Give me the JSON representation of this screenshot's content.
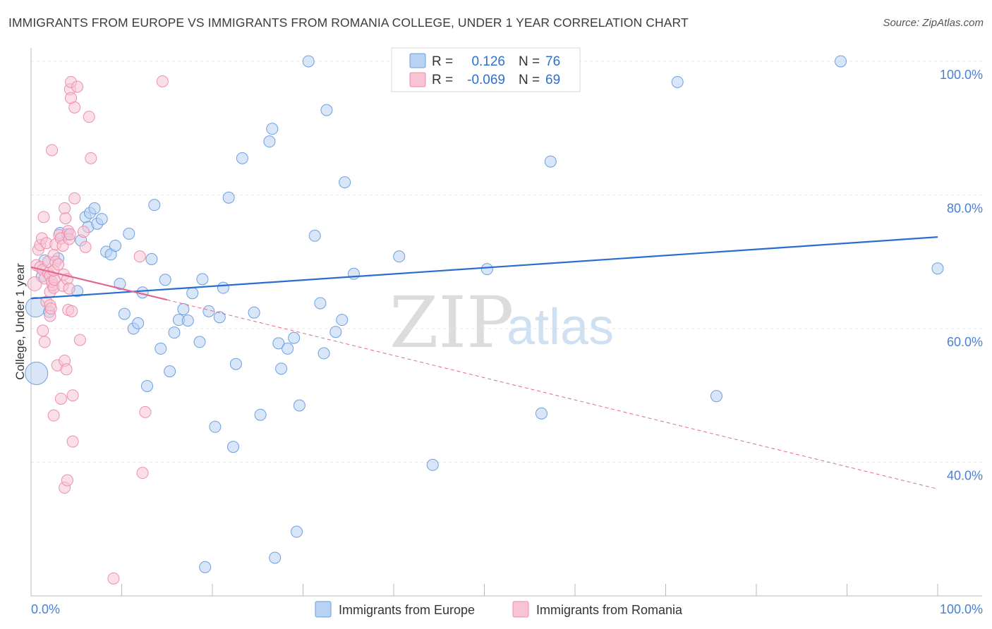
{
  "title": "IMMIGRANTS FROM EUROPE VS IMMIGRANTS FROM ROMANIA COLLEGE, UNDER 1 YEAR CORRELATION CHART",
  "source": "Source: ZipAtlas.com",
  "watermark": {
    "zip": "ZIP",
    "atlas": "atlas"
  },
  "legend": {
    "r_label": "R =",
    "n_label": "N =",
    "europe": {
      "r": "0.126",
      "n": "76"
    },
    "romania": {
      "r": "-0.069",
      "n": "69"
    }
  },
  "colors": {
    "europe_fill": "#b8d2f3",
    "europe_stroke": "#6d9fe0",
    "europe_line": "#2a6ccf",
    "romania_fill": "#f8c4d4",
    "romania_stroke": "#ec8fae",
    "romania_line": "#e0688f"
  },
  "chart_data": {
    "type": "scatter",
    "title": "IMMIGRANTS FROM EUROPE VS IMMIGRANTS FROM ROMANIA COLLEGE, UNDER 1 YEAR CORRELATION CHART",
    "xlabel": "",
    "ylabel": "College, Under 1 year",
    "xlim": [
      0,
      100
    ],
    "ylim": [
      20,
      102
    ],
    "x_tick_labels": [
      "0.0%",
      "100.0%"
    ],
    "y_ticks": [
      {
        "value": 100,
        "label": "100.0%"
      },
      {
        "value": 80,
        "label": "80.0%"
      },
      {
        "value": 60,
        "label": "60.0%"
      },
      {
        "value": 40,
        "label": "40.0%"
      }
    ],
    "series": [
      {
        "name": "Immigrants from Europe",
        "trend": {
          "x0": 0,
          "y0": 64.5,
          "x1": 100,
          "y1": 73.7
        },
        "points": [
          [
            0.5,
            63.2,
            14
          ],
          [
            0.6,
            53.3,
            16
          ],
          [
            1.2,
            67.8,
            8
          ],
          [
            1.5,
            70.2,
            8
          ],
          [
            2.0,
            62.5,
            8
          ],
          [
            3.0,
            70.5,
            8
          ],
          [
            3.2,
            74.3,
            8
          ],
          [
            4.0,
            74.1,
            8
          ],
          [
            5.1,
            65.6,
            8
          ],
          [
            5.5,
            73.2,
            8
          ],
          [
            6.0,
            76.7,
            8
          ],
          [
            6.3,
            75.2,
            8
          ],
          [
            6.5,
            77.3,
            8
          ],
          [
            7.0,
            78.0,
            8
          ],
          [
            7.3,
            75.7,
            8
          ],
          [
            7.8,
            76.4,
            8
          ],
          [
            8.3,
            71.5,
            8
          ],
          [
            8.8,
            71.1,
            8
          ],
          [
            9.3,
            72.4,
            8
          ],
          [
            9.8,
            66.7,
            8
          ],
          [
            10.3,
            62.2,
            8
          ],
          [
            10.8,
            74.2,
            8
          ],
          [
            11.3,
            60.0,
            8
          ],
          [
            11.8,
            60.8,
            8
          ],
          [
            12.3,
            65.4,
            8
          ],
          [
            12.8,
            51.4,
            8
          ],
          [
            13.3,
            70.4,
            8
          ],
          [
            13.6,
            78.5,
            8
          ],
          [
            14.3,
            57.0,
            8
          ],
          [
            14.8,
            67.3,
            8
          ],
          [
            15.3,
            53.6,
            8
          ],
          [
            15.8,
            59.4,
            8
          ],
          [
            16.3,
            61.3,
            8
          ],
          [
            16.8,
            62.9,
            8
          ],
          [
            17.3,
            61.2,
            8
          ],
          [
            17.8,
            65.3,
            8
          ],
          [
            18.6,
            58.0,
            8
          ],
          [
            18.9,
            67.4,
            8
          ],
          [
            19.2,
            24.3,
            8
          ],
          [
            19.6,
            62.6,
            8
          ],
          [
            20.3,
            45.3,
            8
          ],
          [
            20.8,
            61.7,
            8
          ],
          [
            21.2,
            66.1,
            8
          ],
          [
            21.8,
            79.6,
            8
          ],
          [
            22.3,
            42.3,
            8
          ],
          [
            22.6,
            54.7,
            8
          ],
          [
            23.3,
            85.5,
            8
          ],
          [
            24.6,
            62.4,
            8
          ],
          [
            25.3,
            47.1,
            8
          ],
          [
            26.3,
            88.0,
            8
          ],
          [
            26.6,
            89.9,
            8
          ],
          [
            26.9,
            25.7,
            8
          ],
          [
            27.3,
            57.8,
            8
          ],
          [
            27.6,
            54.0,
            8
          ],
          [
            28.3,
            57.0,
            8
          ],
          [
            29.0,
            58.6,
            8
          ],
          [
            29.6,
            48.5,
            8
          ],
          [
            29.3,
            29.6,
            8
          ],
          [
            30.6,
            100.0,
            8
          ],
          [
            31.3,
            73.9,
            8
          ],
          [
            31.9,
            63.8,
            8
          ],
          [
            32.3,
            56.3,
            8
          ],
          [
            32.6,
            92.7,
            8
          ],
          [
            33.6,
            59.5,
            8
          ],
          [
            34.3,
            61.3,
            8
          ],
          [
            34.6,
            81.9,
            8
          ],
          [
            35.6,
            68.2,
            8
          ],
          [
            40.6,
            70.8,
            8
          ],
          [
            44.3,
            39.6,
            8
          ],
          [
            50.3,
            68.9,
            8
          ],
          [
            56.3,
            47.3,
            8
          ],
          [
            57.3,
            85.0,
            8
          ],
          [
            71.3,
            96.9,
            8
          ],
          [
            75.6,
            49.9,
            8
          ],
          [
            89.3,
            100.0,
            8
          ],
          [
            100.0,
            69.0,
            8
          ]
        ]
      },
      {
        "name": "Immigrants from Romania",
        "trend_solid": {
          "x0": 0,
          "y0": 69.2,
          "x1": 15,
          "y1": 64.3
        },
        "trend_dashed": {
          "x0": 15,
          "y0": 64.3,
          "x1": 100,
          "y1": 36.0
        },
        "points": [
          [
            0.4,
            66.7,
            10
          ],
          [
            0.6,
            69.5,
            8
          ],
          [
            0.8,
            71.8,
            8
          ],
          [
            1.0,
            72.5,
            8
          ],
          [
            1.2,
            73.5,
            8
          ],
          [
            1.4,
            76.7,
            8
          ],
          [
            1.0,
            69.2,
            8
          ],
          [
            1.3,
            68.8,
            8
          ],
          [
            1.5,
            67.5,
            8
          ],
          [
            1.7,
            72.8,
            8
          ],
          [
            1.9,
            68.3,
            8
          ],
          [
            1.3,
            59.7,
            8
          ],
          [
            1.5,
            58.0,
            8
          ],
          [
            1.7,
            64.0,
            8
          ],
          [
            1.9,
            70.0,
            8
          ],
          [
            2.1,
            67.9,
            8
          ],
          [
            2.1,
            65.5,
            8
          ],
          [
            2.1,
            61.9,
            8
          ],
          [
            2.3,
            86.7,
            8
          ],
          [
            2.4,
            66.5,
            8
          ],
          [
            2.1,
            63.5,
            8
          ],
          [
            2.3,
            67.0,
            8
          ],
          [
            2.5,
            71.0,
            8
          ],
          [
            2.5,
            66.1,
            8
          ],
          [
            2.7,
            70.0,
            8
          ],
          [
            2.2,
            63.0,
            8
          ],
          [
            2.6,
            67.3,
            8
          ],
          [
            2.5,
            68.7,
            8
          ],
          [
            2.7,
            72.6,
            8
          ],
          [
            2.5,
            47.0,
            8
          ],
          [
            2.9,
            54.5,
            8
          ],
          [
            3.0,
            69.6,
            8
          ],
          [
            3.1,
            74.0,
            8
          ],
          [
            3.3,
            73.5,
            8
          ],
          [
            3.3,
            49.5,
            8
          ],
          [
            3.5,
            72.4,
            8
          ],
          [
            3.5,
            66.4,
            8
          ],
          [
            3.6,
            68.1,
            8
          ],
          [
            3.7,
            55.2,
            8
          ],
          [
            3.7,
            78.0,
            8
          ],
          [
            3.8,
            76.5,
            8
          ],
          [
            3.7,
            36.2,
            8
          ],
          [
            3.9,
            53.9,
            8
          ],
          [
            4.0,
            67.4,
            8
          ],
          [
            4.0,
            37.3,
            8
          ],
          [
            4.1,
            74.6,
            8
          ],
          [
            4.2,
            73.4,
            8
          ],
          [
            4.1,
            62.8,
            8
          ],
          [
            4.2,
            66.0,
            8
          ],
          [
            4.3,
            74.1,
            8
          ],
          [
            4.3,
            95.8,
            8
          ],
          [
            4.4,
            96.9,
            8
          ],
          [
            4.4,
            94.5,
            8
          ],
          [
            4.5,
            62.6,
            8
          ],
          [
            4.6,
            50.0,
            8
          ],
          [
            4.6,
            43.1,
            8
          ],
          [
            4.8,
            93.1,
            8
          ],
          [
            4.8,
            79.5,
            8
          ],
          [
            5.1,
            96.2,
            8
          ],
          [
            5.4,
            58.3,
            8
          ],
          [
            5.8,
            74.5,
            8
          ],
          [
            6.0,
            72.2,
            8
          ],
          [
            6.4,
            91.7,
            8
          ],
          [
            6.6,
            85.5,
            8
          ],
          [
            9.1,
            22.6,
            8
          ],
          [
            12.0,
            70.8,
            8
          ],
          [
            12.3,
            38.4,
            8
          ],
          [
            12.6,
            47.5,
            8
          ],
          [
            14.5,
            97.0,
            8
          ]
        ]
      }
    ]
  }
}
